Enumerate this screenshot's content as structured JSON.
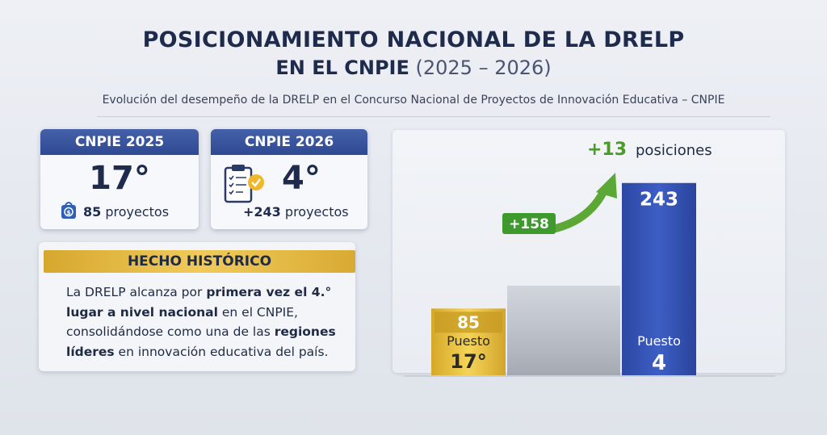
{
  "header": {
    "title_line1": "POSICIONAMIENTO NACIONAL DE LA DRELP",
    "title_line2": "EN EL CNPIE",
    "title_years": "(2025 – 2026)",
    "subtitle": "Evolución del desempeño de la DRELP en el Concurso Nacional de Proyectos de Innovación Educativa – CNPIE"
  },
  "cards": [
    {
      "title": "CNPIE 2025",
      "rank": "17°",
      "projects_count": "85",
      "projects_label": "proyectos",
      "icon": "bag-icon"
    },
    {
      "title": "CNPIE 2026",
      "rank": "4°",
      "projects_count": "+243",
      "projects_label": "proyectos",
      "icon": "clipboard-check-icon"
    }
  ],
  "hecho": {
    "heading": "HECHO HISTÓRICO",
    "p1": "La DRELP alcanza por ",
    "p1_bold": "primera vez el 4.°",
    "p2_bold": "lugar a nivel nacional",
    "p2": " en el CNPIE,",
    "p3": "consolidándose como una de las ",
    "p3_bold": "regiones",
    "p4_bold": "líderes",
    "p4": " en innovación educativa del país."
  },
  "chart_data": {
    "type": "bar",
    "categories": [
      "CNPIE 2025",
      "CNPIE 2026"
    ],
    "values": [
      85,
      243
    ],
    "bar_labels": [
      "85",
      "243"
    ],
    "rank_labels": [
      {
        "label": "Puesto",
        "value": "17°"
      },
      {
        "label": "Puesto",
        "value": "4"
      }
    ],
    "increase_label": "+158",
    "position_gain": "+13",
    "position_gain_label": "posiciones",
    "ylim": [
      0,
      260
    ],
    "colors": {
      "bar_2025": "#e8c43a",
      "bar_2026": "#3554b4",
      "arrow": "#5ca836",
      "badge": "#3f9a2e"
    }
  }
}
